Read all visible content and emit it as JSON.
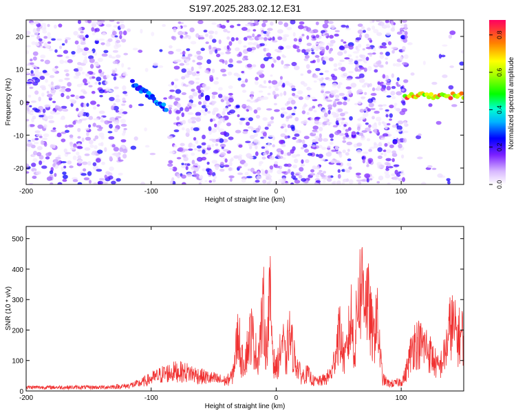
{
  "title": "S197.2025.283.02.12.E31",
  "colors": {
    "snr_line": "#f03030",
    "frame": "#000000",
    "background": "#ffffff"
  },
  "colorbar": {
    "label": "Normalized spectral amplitude",
    "ticks": [
      0.0,
      0.2,
      0.4,
      0.6,
      0.8
    ],
    "range": [
      0,
      0.88
    ],
    "colormap": "rainbow (violet to red)"
  },
  "chart_data": [
    {
      "type": "heatmap",
      "name": "spectrogram",
      "xlabel": "Height of straight line (km)",
      "ylabel": "Frequency (Hz)",
      "xlim": [
        -200,
        150
      ],
      "ylim": [
        -25,
        25
      ],
      "xticks": [
        -200,
        -100,
        0,
        100
      ],
      "yticks": [
        -20,
        -10,
        0,
        10,
        20
      ],
      "grid": false,
      "features": [
        {
          "desc": "diagonal bright streak",
          "x": [
            -115,
            -88
          ],
          "freq": [
            6,
            -2
          ],
          "amplitude": 0.35
        },
        {
          "desc": "narrow band",
          "x": [
            103,
            150
          ],
          "freq": [
            2,
            2
          ],
          "amplitude": 0.85
        },
        {
          "desc": "spot",
          "x": [
            -55,
            -55
          ],
          "freq": [
            1,
            1
          ],
          "amplitude": 0.25
        },
        {
          "desc": "spot",
          "x": [
            62,
            62
          ],
          "freq": [
            -10,
            -10
          ],
          "amplitude": 0.2
        },
        {
          "desc": "spot",
          "x": [
            95,
            95
          ],
          "freq": [
            -11.5,
            -11.5
          ],
          "amplitude": 0.3
        }
      ],
      "gaps_x": [
        [
          -120,
          -85
        ],
        [
          -35,
          -32
        ],
        [
          60,
          63
        ],
        [
          104,
          150
        ]
      ]
    },
    {
      "type": "line",
      "name": "snr",
      "xlabel": "Height of straight line (km)",
      "ylabel": "SNR (10 * v/v)",
      "xlim": [
        -200,
        150
      ],
      "ylim": [
        0,
        540
      ],
      "xticks": [
        -200,
        -100,
        0,
        100
      ],
      "yticks": [
        0,
        100,
        200,
        300,
        400,
        500
      ],
      "grid": false,
      "x": [
        -200,
        -180,
        -160,
        -140,
        -120,
        -110,
        -100,
        -90,
        -80,
        -70,
        -60,
        -50,
        -40,
        -35,
        -30,
        -28,
        -25,
        -20,
        -15,
        -10,
        -8,
        -5,
        -2,
        0,
        3,
        5,
        8,
        10,
        15,
        20,
        25,
        30,
        35,
        40,
        45,
        50,
        55,
        60,
        63,
        65,
        68,
        70,
        75,
        78,
        80,
        85,
        90,
        95,
        100,
        103,
        110,
        120,
        130,
        135,
        140,
        145,
        150
      ],
      "y": [
        15,
        15,
        15,
        15,
        20,
        30,
        50,
        70,
        80,
        75,
        60,
        50,
        40,
        60,
        250,
        120,
        130,
        240,
        130,
        330,
        160,
        380,
        120,
        90,
        150,
        210,
        110,
        240,
        130,
        60,
        70,
        40,
        40,
        50,
        80,
        250,
        120,
        300,
        150,
        380,
        420,
        450,
        300,
        200,
        330,
        50,
        30,
        30,
        40,
        60,
        200,
        180,
        90,
        150,
        280,
        220,
        230
      ]
    }
  ]
}
